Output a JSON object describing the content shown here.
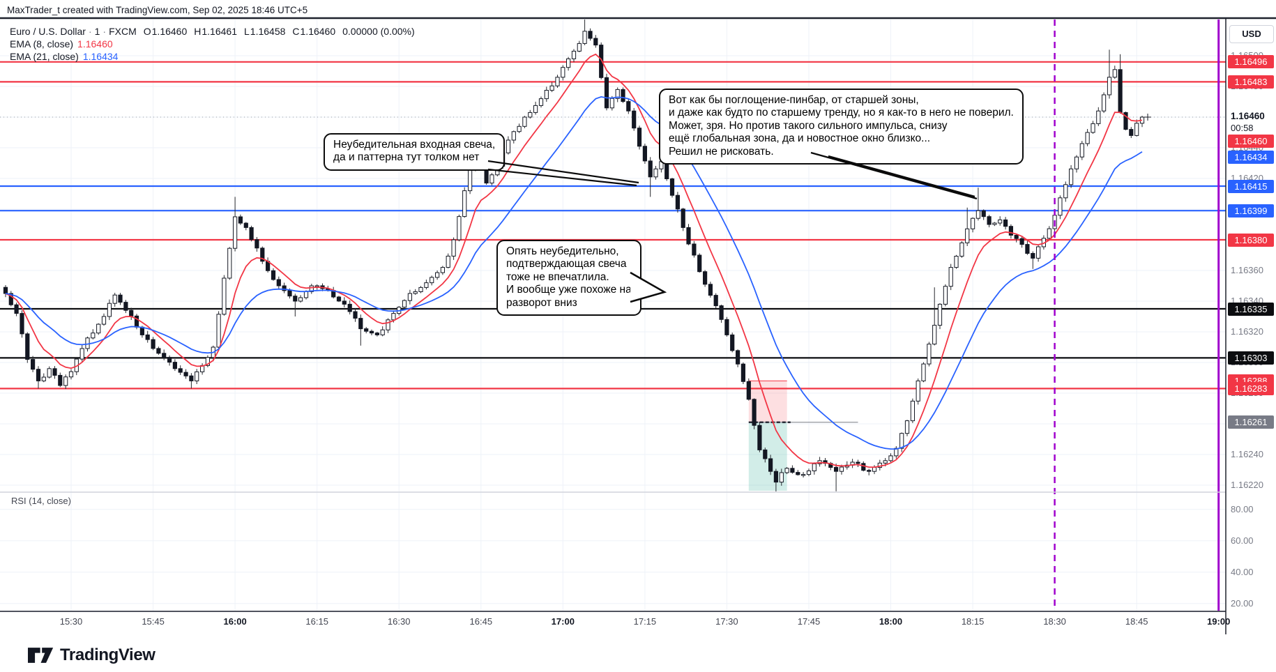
{
  "attribution": "MaxTrader_t created with TradingView.com, Sep 02, 2025 18:46 UTC+5",
  "header": {
    "symbol": "Euro / U.S. Dollar",
    "separator": "·",
    "interval": "1",
    "exchange": "FXCM",
    "o_key": "O",
    "o_val": "1.16460",
    "h_key": "H",
    "h_val": "1.16461",
    "l_key": "L",
    "l_val": "1.16458",
    "c_key": "C",
    "c_val": "1.16460",
    "change": "0.00000 (0.00%)"
  },
  "indicators": [
    {
      "label": "EMA (8, close)",
      "value": "1.16460",
      "color": "#f23645"
    },
    {
      "label": "EMA (21, close)",
      "value": "1.16434",
      "color": "#2962ff"
    }
  ],
  "rsi": {
    "label": "RSI (14, close)",
    "ticks": [
      "80.00",
      "60.00",
      "40.00",
      "20.00"
    ]
  },
  "axis": {
    "currency": "USD",
    "price_ticks": [
      "1.16500",
      "1.16480",
      "1.16440",
      "1.16420",
      "1.16400",
      "1.16380",
      "1.16360",
      "1.16340",
      "1.16320",
      "1.16300",
      "1.16280",
      "1.16260",
      "1.16240",
      "1.16220"
    ],
    "current": {
      "price": "1.16460",
      "countdown": "00:58",
      "label_bg": "#f23645"
    },
    "price_labels": [
      {
        "text": "1.16496",
        "bg": "#f23645"
      },
      {
        "text": "1.16483",
        "bg": "#f23645"
      },
      {
        "text": "1.16434",
        "bg": "#2962ff"
      },
      {
        "text": "1.16415",
        "bg": "#2962ff"
      },
      {
        "text": "1.16399",
        "bg": "#2962ff"
      },
      {
        "text": "1.16380",
        "bg": "#f23645"
      },
      {
        "text": "1.16335",
        "bg": "#0c0d10"
      },
      {
        "text": "1.16303",
        "bg": "#0c0d10"
      },
      {
        "text": "1.16288",
        "bg": "#f23645"
      },
      {
        "text": "1.16283",
        "bg": "#f23645"
      },
      {
        "text": "1.16261",
        "bg": "#787b86"
      }
    ],
    "time_ticks": [
      {
        "label": "15:30"
      },
      {
        "label": "15:45"
      },
      {
        "label": "16:00",
        "bold": true
      },
      {
        "label": "16:15"
      },
      {
        "label": "16:30"
      },
      {
        "label": "16:45"
      },
      {
        "label": "17:00",
        "bold": true
      },
      {
        "label": "17:15"
      },
      {
        "label": "17:30"
      },
      {
        "label": "17:45"
      },
      {
        "label": "18:00",
        "bold": true
      },
      {
        "label": "18:15"
      },
      {
        "label": "18:30"
      },
      {
        "label": "18:45"
      },
      {
        "label": "19:00",
        "bold": true
      }
    ]
  },
  "callouts": [
    {
      "lines": [
        "Неубедительная входная свеча,",
        "да и паттерна тут толком нет"
      ]
    },
    {
      "lines": [
        "Опять неубедительно,",
        "подтверждающая свеча",
        "тоже не впечатлила.",
        "И вообще уже похоже на",
        "разворот вниз"
      ]
    },
    {
      "lines": [
        "Вот как бы поглощение-пинбар, от старшей зоны,",
        "и даже как будто по старшему тренду, но я как-то в него не поверил.",
        "Может, зря. Но против такого сильного импульса, снизу",
        "ещё глобальная зона, да и новостное окно близко...",
        "Решил не рисковать."
      ]
    }
  ],
  "logo": {
    "text": "TradingView"
  },
  "chart_data": {
    "type": "candlestick",
    "symbol": "EURUSD",
    "description": "Euro / U.S. Dollar",
    "interval": "1 minute",
    "exchange": "FXCM",
    "price_axis_visible_range": [
      1.16216,
      1.16522
    ],
    "time_axis_visible_range": [
      "15:17",
      "19:02"
    ],
    "first_bar": "15:18",
    "last_bar": "18:46",
    "current_price": 1.1646,
    "ohlc_last": {
      "open": 1.1646,
      "high": 1.16461,
      "low": 1.16458,
      "close": 1.1646
    },
    "ema": [
      {
        "length": 8,
        "color": "#f23645",
        "last_value": 1.1646
      },
      {
        "length": 21,
        "color": "#2962ff",
        "last_value": 1.16434
      }
    ],
    "rsi_visible_plot": false,
    "horizontal_lines": [
      {
        "price": 1.16496,
        "color": "#f23645"
      },
      {
        "price": 1.16483,
        "color": "#f23645"
      },
      {
        "price": 1.16415,
        "color": "#2962ff"
      },
      {
        "price": 1.16399,
        "color": "#2962ff"
      },
      {
        "price": 1.1638,
        "color": "#f23645"
      },
      {
        "price": 1.16335,
        "color": "#0c0d10"
      },
      {
        "price": 1.16303,
        "color": "#0c0d10"
      },
      {
        "price": 1.16283,
        "color": "#f23645"
      }
    ],
    "vertical_lines": [
      {
        "time": "18:30",
        "style": "dashed",
        "color": "#a000cd"
      },
      {
        "time": "19:00",
        "style": "solid",
        "color": "#a000cd"
      }
    ],
    "short_position": {
      "entry": 1.16261,
      "stop": 1.16288,
      "time_start": "17:34",
      "time_end": "17:41",
      "entry_line_extends_to": "17:54",
      "stop_zone_color": "rgba(242,54,69,0.16)",
      "profit_zone_color": "rgba(8,153,129,0.18)"
    },
    "waypoints": [
      [
        "15:18",
        1.16345
      ],
      [
        "15:20",
        1.16332
      ],
      [
        "15:22",
        1.16302
      ],
      [
        "15:24",
        1.16288
      ],
      [
        "15:26",
        1.16296
      ],
      [
        "15:28",
        1.16285
      ],
      [
        "15:30",
        1.16294
      ],
      [
        "15:33",
        1.16316
      ],
      [
        "15:36",
        1.1633
      ],
      [
        "15:38",
        1.16344
      ],
      [
        "15:40",
        1.16334
      ],
      [
        "15:43",
        1.16318
      ],
      [
        "15:46",
        1.16306
      ],
      [
        "15:49",
        1.16296
      ],
      [
        "15:52",
        1.16288
      ],
      [
        "15:54",
        1.16298
      ],
      [
        "15:56",
        1.1631
      ],
      [
        "15:58",
        1.16355
      ],
      [
        "16:00",
        1.16395
      ],
      [
        "16:02",
        1.16388
      ],
      [
        "16:05",
        1.16366
      ],
      [
        "16:08",
        1.1635
      ],
      [
        "16:11",
        1.1634
      ],
      [
        "16:14",
        1.1635
      ],
      [
        "16:17",
        1.16347
      ],
      [
        "16:20",
        1.16338
      ],
      [
        "16:23",
        1.16322
      ],
      [
        "16:26",
        1.16318
      ],
      [
        "16:29",
        1.16332
      ],
      [
        "16:32",
        1.16345
      ],
      [
        "16:35",
        1.16352
      ],
      [
        "16:38",
        1.16362
      ],
      [
        "16:40",
        1.1638
      ],
      [
        "16:42",
        1.16412
      ],
      [
        "16:44",
        1.16438
      ],
      [
        "16:46",
        1.16417
      ],
      [
        "16:48",
        1.16428
      ],
      [
        "16:50",
        1.16445
      ],
      [
        "16:53",
        1.1646
      ],
      [
        "16:56",
        1.16472
      ],
      [
        "16:59",
        1.16486
      ],
      [
        "17:02",
        1.16503
      ],
      [
        "17:04",
        1.16516
      ],
      [
        "17:06",
        1.16507
      ],
      [
        "17:08",
        1.16466
      ],
      [
        "17:10",
        1.16478
      ],
      [
        "17:12",
        1.16464
      ],
      [
        "17:14",
        1.16441
      ],
      [
        "17:16",
        1.16421
      ],
      [
        "17:18",
        1.16431
      ],
      [
        "17:20",
        1.16409
      ],
      [
        "17:22",
        1.16388
      ],
      [
        "17:24",
        1.1637
      ],
      [
        "17:26",
        1.16351
      ],
      [
        "17:28",
        1.16337
      ],
      [
        "17:30",
        1.16318
      ],
      [
        "17:32",
        1.16299
      ],
      [
        "17:34",
        1.16276
      ],
      [
        "17:35",
        1.16259
      ],
      [
        "17:36",
        1.16243
      ],
      [
        "17:38",
        1.16229
      ],
      [
        "17:39",
        1.16222
      ],
      [
        "17:41",
        1.16231
      ],
      [
        "17:44",
        1.16227
      ],
      [
        "17:47",
        1.16236
      ],
      [
        "17:50",
        1.16229
      ],
      [
        "17:53",
        1.16235
      ],
      [
        "17:56",
        1.16229
      ],
      [
        "17:59",
        1.16236
      ],
      [
        "18:01",
        1.16244
      ],
      [
        "18:03",
        1.16262
      ],
      [
        "18:05",
        1.16288
      ],
      [
        "18:07",
        1.16312
      ],
      [
        "18:09",
        1.16338
      ],
      [
        "18:11",
        1.16362
      ],
      [
        "18:13",
        1.16378
      ],
      [
        "18:15",
        1.16394
      ],
      [
        "18:16",
        1.16399
      ],
      [
        "18:18",
        1.1639
      ],
      [
        "18:20",
        1.16393
      ],
      [
        "18:22",
        1.16383
      ],
      [
        "18:24",
        1.16377
      ],
      [
        "18:26",
        1.16368
      ],
      [
        "18:28",
        1.16381
      ],
      [
        "18:30",
        1.16396
      ],
      [
        "18:32",
        1.16416
      ],
      [
        "18:34",
        1.16434
      ],
      [
        "18:36",
        1.1645
      ],
      [
        "18:38",
        1.16464
      ],
      [
        "18:40",
        1.16486
      ],
      [
        "18:41",
        1.16491
      ],
      [
        "18:42",
        1.16463
      ],
      [
        "18:43",
        1.16452
      ],
      [
        "18:44",
        1.16448
      ],
      [
        "18:45",
        1.16456
      ],
      [
        "18:46",
        1.1646
      ]
    ],
    "wick_overrides": {
      "15:24": {
        "low": 1.16283
      },
      "15:28": {
        "low": 1.16284
      },
      "15:52": {
        "low": 1.16283
      },
      "16:00": {
        "high": 1.16408
      },
      "16:11": {
        "low": 1.1633
      },
      "16:23": {
        "low": 1.16311
      },
      "16:44": {
        "high": 1.16448
      },
      "17:04": {
        "high": 1.16524
      },
      "17:16": {
        "low": 1.16408
      },
      "17:39": {
        "low": 1.16212
      },
      "17:50": {
        "low": 1.16216
      },
      "18:08": {
        "high": 1.16349
      },
      "18:14": {
        "high": 1.16401
      },
      "18:16": {
        "high": 1.16414
      },
      "18:26": {
        "low": 1.16361
      },
      "18:40": {
        "high": 1.16504
      },
      "18:42": {
        "high": 1.16501
      }
    }
  }
}
